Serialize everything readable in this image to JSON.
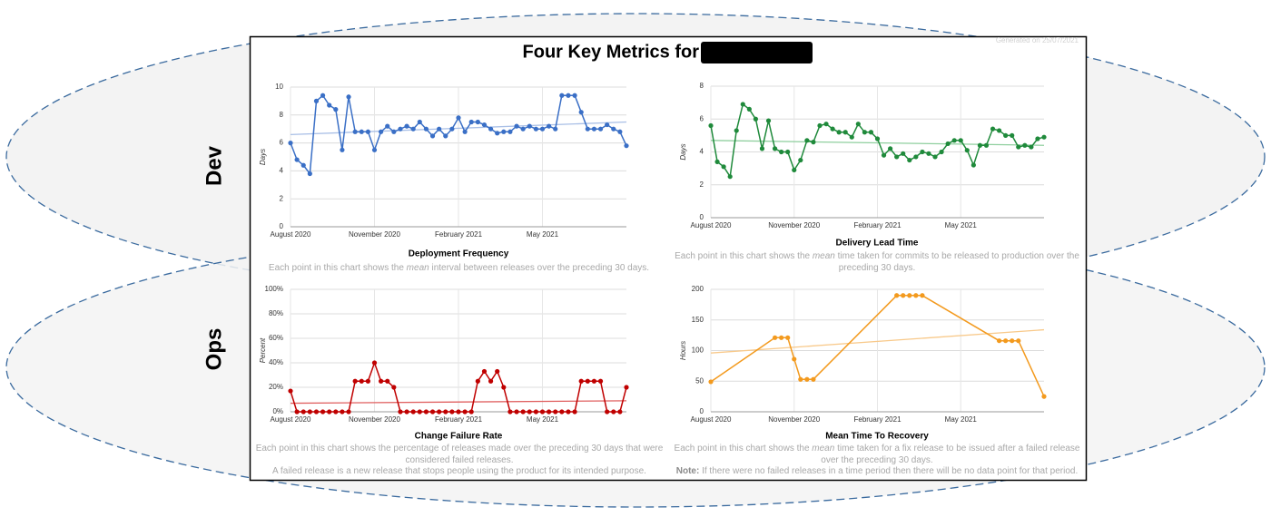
{
  "header": {
    "title": "Four Key Metrics for",
    "generated": "Generated on 25/07/2021"
  },
  "sections": [
    "Dev",
    "Ops"
  ],
  "chart_data": [
    {
      "type": "line",
      "title": "Deployment Frequency",
      "ylabel": "Days",
      "color": "#3a6fc6",
      "trend_color": "#a9bfe6",
      "categories": [
        "August 2020",
        null,
        null,
        null,
        null,
        null,
        null,
        null,
        null,
        null,
        null,
        null,
        null,
        "November 2020",
        null,
        null,
        null,
        null,
        null,
        null,
        null,
        null,
        null,
        null,
        null,
        null,
        "February 2021",
        null,
        null,
        null,
        null,
        null,
        null,
        null,
        null,
        null,
        null,
        null,
        null,
        "May 2021",
        null,
        null,
        null,
        null,
        null,
        null,
        null,
        null,
        null,
        null,
        null,
        null,
        null
      ],
      "values": [
        6.0,
        4.8,
        4.4,
        3.8,
        9.0,
        9.4,
        8.7,
        8.4,
        5.5,
        9.3,
        6.8,
        6.8,
        6.8,
        5.5,
        6.8,
        7.2,
        6.8,
        7.0,
        7.2,
        7.0,
        7.5,
        7.0,
        6.5,
        7.0,
        6.5,
        7.0,
        7.8,
        6.8,
        7.5,
        7.5,
        7.3,
        7.0,
        6.7,
        6.8,
        6.8,
        7.2,
        7.0,
        7.2,
        7.0,
        7.0,
        7.2,
        7.0,
        9.4,
        9.4,
        9.4,
        8.2,
        7.0,
        7.0,
        7.0,
        7.3,
        7.0,
        6.8,
        5.8
      ],
      "trend": [
        6.6,
        7.5
      ],
      "ylim": [
        0,
        10
      ],
      "yticks": [
        0,
        2,
        4,
        6,
        8,
        10
      ],
      "grid": true,
      "description": [
        [
          {
            "text": "Each point in this chart shows the "
          },
          {
            "text": "mean",
            "style": "italic"
          },
          {
            "text": " interval between releases over the preceding 30 days."
          }
        ]
      ]
    },
    {
      "type": "line",
      "title": "Delivery Lead Time",
      "ylabel": "Days",
      "color": "#1f8a3b",
      "trend_color": "#8fcf9e",
      "categories": [
        "August 2020",
        null,
        null,
        null,
        null,
        null,
        null,
        null,
        null,
        null,
        null,
        null,
        null,
        "November 2020",
        null,
        null,
        null,
        null,
        null,
        null,
        null,
        null,
        null,
        null,
        null,
        null,
        "February 2021",
        null,
        null,
        null,
        null,
        null,
        null,
        null,
        null,
        null,
        null,
        null,
        null,
        "May 2021",
        null,
        null,
        null,
        null,
        null,
        null,
        null,
        null,
        null,
        null,
        null,
        null,
        null
      ],
      "values": [
        5.6,
        3.4,
        3.1,
        2.5,
        5.3,
        6.9,
        6.6,
        6.0,
        4.2,
        5.9,
        4.2,
        4.0,
        4.0,
        2.9,
        3.5,
        4.7,
        4.6,
        5.6,
        5.7,
        5.4,
        5.2,
        5.2,
        4.9,
        5.7,
        5.2,
        5.2,
        4.8,
        3.8,
        4.2,
        3.7,
        3.9,
        3.5,
        3.7,
        4.0,
        3.9,
        3.7,
        4.0,
        4.5,
        4.7,
        4.7,
        4.1,
        3.2,
        4.4,
        4.4,
        5.4,
        5.3,
        5.0,
        5.0,
        4.3,
        4.4,
        4.3,
        4.8,
        4.9
      ],
      "trend": [
        4.7,
        4.4
      ],
      "ylim": [
        0,
        8
      ],
      "yticks": [
        0,
        2,
        4,
        6,
        8
      ],
      "grid": true,
      "description": [
        [
          {
            "text": "Each point in this chart shows the "
          },
          {
            "text": "mean",
            "style": "italic"
          },
          {
            "text": " time taken for commits to be released to production over the preceding 30 days."
          }
        ]
      ]
    },
    {
      "type": "line",
      "title": "Change Failure Rate",
      "ylabel": "Percent",
      "color": "#c00000",
      "trend_color": "#e06060",
      "categories": [
        "August 2020",
        null,
        null,
        null,
        null,
        null,
        null,
        null,
        null,
        null,
        null,
        null,
        null,
        "November 2020",
        null,
        null,
        null,
        null,
        null,
        null,
        null,
        null,
        null,
        null,
        null,
        null,
        "February 2021",
        null,
        null,
        null,
        null,
        null,
        null,
        null,
        null,
        null,
        null,
        null,
        null,
        "May 2021",
        null,
        null,
        null,
        null,
        null,
        null,
        null,
        null,
        null,
        null,
        null,
        null,
        null
      ],
      "values": [
        17,
        0,
        0,
        0,
        0,
        0,
        0,
        0,
        0,
        0,
        25,
        25,
        25,
        40,
        25,
        25,
        20,
        0,
        0,
        0,
        0,
        0,
        0,
        0,
        0,
        0,
        0,
        0,
        0,
        25,
        33,
        25,
        33,
        20,
        0,
        0,
        0,
        0,
        0,
        0,
        0,
        0,
        0,
        0,
        0,
        25,
        25,
        25,
        25,
        0,
        0,
        0,
        20
      ],
      "trend": [
        7,
        9
      ],
      "ylim": [
        0,
        100
      ],
      "yticks": [
        {
          "value": 0,
          "label": "0%"
        },
        {
          "value": 20,
          "label": "20%"
        },
        {
          "value": 40,
          "label": "40%"
        },
        {
          "value": 60,
          "label": "60%"
        },
        {
          "value": 80,
          "label": "80%"
        },
        {
          "value": 100,
          "label": "100%"
        }
      ],
      "grid": true,
      "description": [
        [
          {
            "text": "Each point in this chart shows the percentage of releases made over the preceding 30 days that were considered failed releases."
          }
        ],
        [
          {
            "text": "A failed release is a new release that stops people using the product for its intended purpose."
          }
        ]
      ]
    },
    {
      "type": "line",
      "title": "Mean Time To Recovery",
      "ylabel": "Hours",
      "color": "#f39a1e",
      "trend_color": "#f8c98a",
      "x": [
        0,
        10,
        11,
        12,
        13,
        14,
        15,
        16,
        29,
        30,
        31,
        32,
        33,
        45,
        46,
        47,
        48,
        52
      ],
      "values": [
        49,
        121,
        121,
        121,
        86,
        53,
        53,
        53,
        190,
        190,
        190,
        190,
        190,
        116,
        116,
        116,
        116,
        25
      ],
      "xlim": [
        0,
        52
      ],
      "xticks": [
        {
          "value": 0,
          "label": "August 2020"
        },
        {
          "value": 13,
          "label": "November 2020"
        },
        {
          "value": 26,
          "label": "February 2021"
        },
        {
          "value": 39,
          "label": "May 2021"
        }
      ],
      "trend": [
        96,
        134
      ],
      "ylim": [
        0,
        200
      ],
      "yticks": [
        0,
        50,
        100,
        150,
        200
      ],
      "grid": true,
      "description": [
        [
          {
            "text": "Each point in this chart shows the "
          },
          {
            "text": "mean",
            "style": "italic"
          },
          {
            "text": " time taken for a fix release to be issued after a failed release over the preceding 30 days."
          }
        ],
        [
          {
            "text": "Note:",
            "style": "bold"
          },
          {
            "text": " If there were no failed releases in a time period then there will be no data point for that period."
          }
        ]
      ]
    }
  ]
}
